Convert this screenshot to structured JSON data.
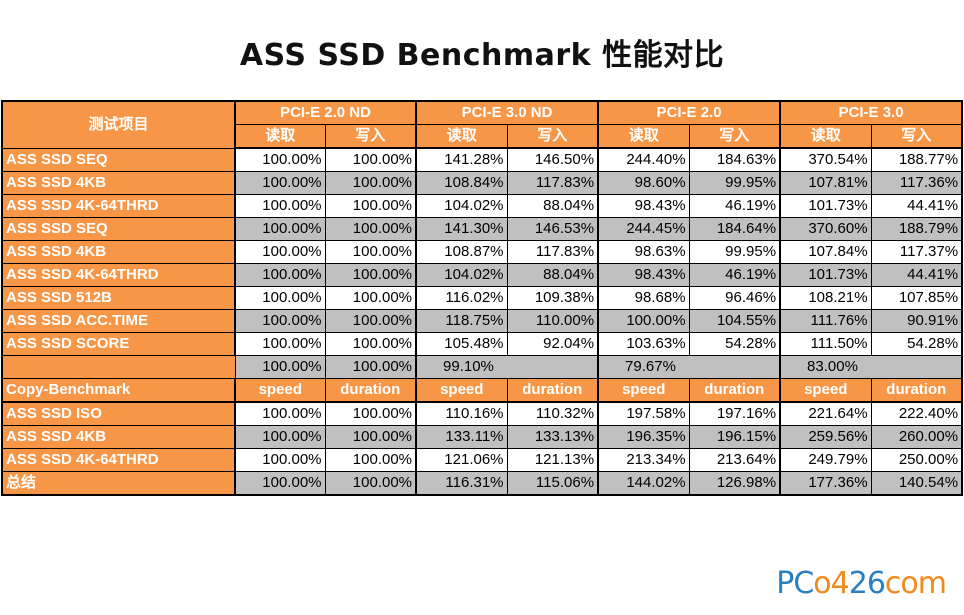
{
  "title": "ASS SSD Benchmark 性能对比",
  "colors": {
    "header_orange": "#f79646",
    "row_gray": "#c0c0c0",
    "row_white": "#ffffff"
  },
  "logo": {
    "part1": "PC",
    "part2": "o4",
    "part3": "26",
    "part4": "com"
  },
  "chart_data": {
    "type": "table",
    "title": "ASS SSD Benchmark 性能对比",
    "corner_header": "测试项目",
    "groups": [
      "PCI-E 2.0 ND",
      "PCI-E 3.0 ND",
      "PCI-E 2.0",
      "PCI-E 3.0"
    ],
    "sub_headers": [
      "读取",
      "写入"
    ],
    "rows": [
      {
        "label": "ASS SSD SEQ",
        "values": [
          "100.00%",
          "100.00%",
          "141.28%",
          "146.50%",
          "244.40%",
          "184.63%",
          "370.54%",
          "188.77%"
        ]
      },
      {
        "label": "ASS SSD 4KB",
        "values": [
          "100.00%",
          "100.00%",
          "108.84%",
          "117.83%",
          "98.60%",
          "99.95%",
          "107.81%",
          "117.36%"
        ]
      },
      {
        "label": "ASS SSD 4K-64THRD",
        "values": [
          "100.00%",
          "100.00%",
          "104.02%",
          "88.04%",
          "98.43%",
          "46.19%",
          "101.73%",
          "44.41%"
        ]
      },
      {
        "label": "ASS SSD SEQ",
        "values": [
          "100.00%",
          "100.00%",
          "141.30%",
          "146.53%",
          "244.45%",
          "184.64%",
          "370.60%",
          "188.79%"
        ]
      },
      {
        "label": "ASS SSD 4KB",
        "values": [
          "100.00%",
          "100.00%",
          "108.87%",
          "117.83%",
          "98.63%",
          "99.95%",
          "107.84%",
          "117.37%"
        ]
      },
      {
        "label": "ASS SSD 4K-64THRD",
        "values": [
          "100.00%",
          "100.00%",
          "104.02%",
          "88.04%",
          "98.43%",
          "46.19%",
          "101.73%",
          "44.41%"
        ]
      },
      {
        "label": "ASS SSD 512B",
        "values": [
          "100.00%",
          "100.00%",
          "116.02%",
          "109.38%",
          "98.68%",
          "96.46%",
          "108.21%",
          "107.85%"
        ]
      },
      {
        "label": "ASS SSD ACC.TIME",
        "values": [
          "100.00%",
          "100.00%",
          "118.75%",
          "110.00%",
          "100.00%",
          "104.55%",
          "111.76%",
          "90.91%"
        ]
      },
      {
        "label": "ASS SSD SCORE",
        "values": [
          "100.00%",
          "100.00%",
          "105.48%",
          "92.04%",
          "103.63%",
          "54.28%",
          "111.50%",
          "54.28%"
        ]
      }
    ],
    "subtotal_row": {
      "label": "",
      "values": [
        "100.00%",
        "100.00%",
        "99.10%",
        "79.67%",
        "83.00%"
      ]
    },
    "copy_header": {
      "label": "Copy-Benchmark",
      "speed": "speed",
      "duration": "duration"
    },
    "copy_rows": [
      {
        "label": "ASS SSD ISO",
        "values": [
          "100.00%",
          "100.00%",
          "110.16%",
          "110.32%",
          "197.58%",
          "197.16%",
          "221.64%",
          "222.40%"
        ]
      },
      {
        "label": "ASS SSD 4KB",
        "values": [
          "100.00%",
          "100.00%",
          "133.11%",
          "133.13%",
          "196.35%",
          "196.15%",
          "259.56%",
          "260.00%"
        ]
      },
      {
        "label": "ASS SSD 4K-64THRD",
        "values": [
          "100.00%",
          "100.00%",
          "121.06%",
          "121.13%",
          "213.34%",
          "213.64%",
          "249.79%",
          "250.00%"
        ]
      }
    ],
    "summary_row": {
      "label": "总结",
      "values": [
        "100.00%",
        "100.00%",
        "116.31%",
        "115.06%",
        "144.02%",
        "126.98%",
        "177.36%",
        "140.54%"
      ]
    }
  }
}
